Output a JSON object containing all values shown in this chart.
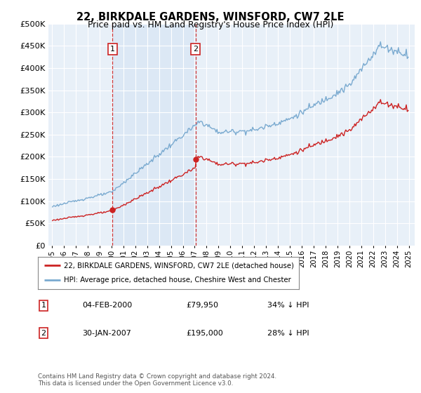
{
  "title1": "22, BIRKDALE GARDENS, WINSFORD, CW7 2LE",
  "title2": "Price paid vs. HM Land Registry's House Price Index (HPI)",
  "legend1": "22, BIRKDALE GARDENS, WINSFORD, CW7 2LE (detached house)",
  "legend2": "HPI: Average price, detached house, Cheshire West and Chester",
  "footnote": "Contains HM Land Registry data © Crown copyright and database right 2024.\nThis data is licensed under the Open Government Licence v3.0.",
  "transaction1_date": "04-FEB-2000",
  "transaction1_price": "£79,950",
  "transaction1_hpi": "34% ↓ HPI",
  "transaction1_x": 2000.09,
  "transaction1_y": 79950,
  "transaction2_date": "30-JAN-2007",
  "transaction2_price": "£195,000",
  "transaction2_hpi": "28% ↓ HPI",
  "transaction2_x": 2007.08,
  "transaction2_y": 195000,
  "ylim": [
    0,
    500000
  ],
  "yticks": [
    0,
    50000,
    100000,
    150000,
    200000,
    250000,
    300000,
    350000,
    400000,
    450000,
    500000
  ],
  "background_color": "#ffffff",
  "plot_bg_color": "#e8f0f8",
  "shade_color": "#dce8f5",
  "grid_color": "#ffffff",
  "hpi_line_color": "#7aaad0",
  "price_line_color": "#cc2222",
  "vline_color": "#cc2222",
  "box_color": "#cc2222",
  "xlim_left": 1994.7,
  "xlim_right": 2025.5
}
